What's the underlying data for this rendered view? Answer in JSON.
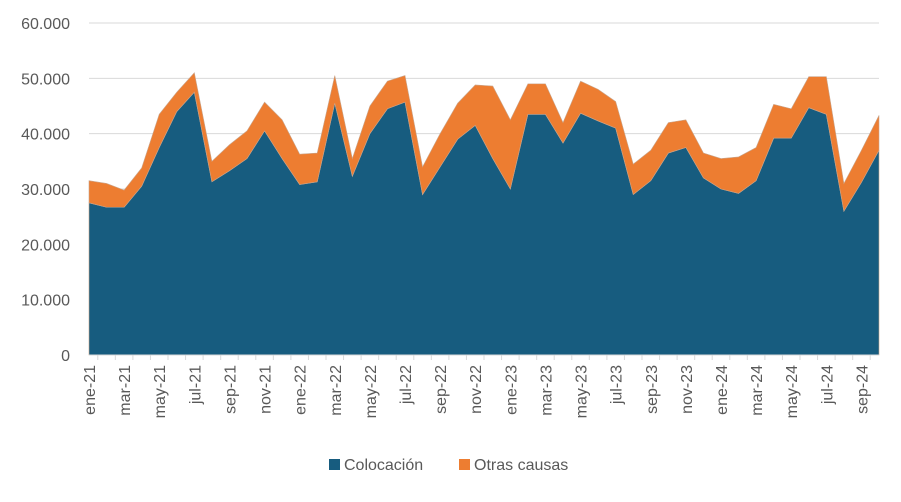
{
  "chart_data": {
    "type": "area",
    "stacked": true,
    "title": "",
    "xlabel": "",
    "ylabel": "",
    "ylim": [
      0,
      60000
    ],
    "yticks": [
      0,
      10000,
      20000,
      30000,
      40000,
      50000,
      60000
    ],
    "ytick_labels": [
      "0",
      "10.000",
      "20.000",
      "30.000",
      "40.000",
      "50.000",
      "60.000"
    ],
    "grid": "horizontal",
    "legend_position": "bottom",
    "categories": [
      "ene-21",
      "feb-21",
      "mar-21",
      "abr-21",
      "may-21",
      "jun-21",
      "jul-21",
      "ago-21",
      "sep-21",
      "oct-21",
      "nov-21",
      "dic-21",
      "ene-22",
      "feb-22",
      "mar-22",
      "abr-22",
      "may-22",
      "jun-22",
      "jul-22",
      "ago-22",
      "sep-22",
      "oct-22",
      "nov-22",
      "dic-22",
      "ene-23",
      "feb-23",
      "mar-23",
      "abr-23",
      "may-23",
      "jun-23",
      "jul-23",
      "ago-23",
      "sep-23",
      "oct-23",
      "nov-23",
      "dic-23",
      "ene-24",
      "feb-24",
      "mar-24",
      "abr-24",
      "may-24",
      "jun-24",
      "jul-24",
      "ago-24",
      "sep-24",
      "oct-24"
    ],
    "xtick_labels": [
      "ene-21",
      "mar-21",
      "may-21",
      "jul-21",
      "sep-21",
      "nov-21",
      "ene-22",
      "mar-22",
      "may-22",
      "jul-22",
      "sep-22",
      "nov-22",
      "ene-23",
      "mar-23",
      "may-23",
      "jul-23",
      "sep-23",
      "nov-23",
      "ene-24",
      "mar-24",
      "may-24",
      "jul-24",
      "sep-24"
    ],
    "series": [
      {
        "name": "Colocación",
        "color": "#175c7f",
        "values": [
          27500,
          26700,
          26700,
          30500,
          37500,
          44000,
          47500,
          31300,
          33300,
          35500,
          40500,
          35500,
          30800,
          31300,
          45500,
          32300,
          40000,
          44500,
          45700,
          29000,
          34000,
          39000,
          41500,
          35500,
          30000,
          43500,
          43500,
          38300,
          43700,
          42300,
          41000,
          29000,
          31500,
          36500,
          37500,
          32000,
          30000,
          29200,
          31500,
          39200,
          39200,
          44700,
          43500,
          26000,
          31200,
          37000
        ]
      },
      {
        "name": "Otras causas",
        "color": "#ed7d31",
        "values": [
          4000,
          4300,
          3100,
          3300,
          6000,
          3500,
          3500,
          3700,
          4700,
          5000,
          5200,
          7000,
          5500,
          5200,
          5000,
          3200,
          5000,
          5000,
          4800,
          5000,
          6000,
          6500,
          7300,
          13100,
          12500,
          5500,
          5500,
          3700,
          5800,
          5700,
          4800,
          5500,
          5500,
          5500,
          5000,
          4500,
          5500,
          6600,
          6000,
          6100,
          5300,
          5600,
          6800,
          5000,
          5800,
          6300
        ]
      }
    ]
  }
}
